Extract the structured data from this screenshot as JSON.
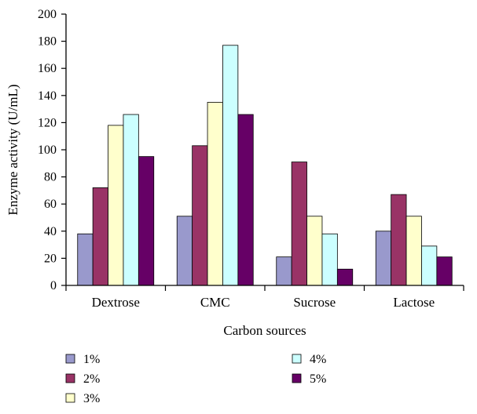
{
  "chart_data": {
    "type": "bar",
    "title": "",
    "xlabel": "Carbon sources",
    "ylabel": "Enzyme activity (U/mL)",
    "ylim": [
      0,
      200
    ],
    "yticks": [
      0,
      20,
      40,
      60,
      80,
      100,
      120,
      140,
      160,
      180,
      200
    ],
    "categories": [
      "Dextrose",
      "CMC",
      "Sucrose",
      "Lactose"
    ],
    "series": [
      {
        "name": "1%",
        "color": "#9999cc",
        "values": [
          38,
          51,
          21,
          40
        ]
      },
      {
        "name": "2%",
        "color": "#993366",
        "values": [
          72,
          103,
          91,
          67
        ]
      },
      {
        "name": "3%",
        "color": "#ffffcc",
        "values": [
          118,
          135,
          51,
          51
        ]
      },
      {
        "name": "4%",
        "color": "#ccffff",
        "values": [
          126,
          177,
          38,
          29
        ]
      },
      {
        "name": "5%",
        "color": "#660066",
        "values": [
          95,
          126,
          12,
          21
        ]
      }
    ],
    "grid": false,
    "legend_position": "bottom"
  }
}
